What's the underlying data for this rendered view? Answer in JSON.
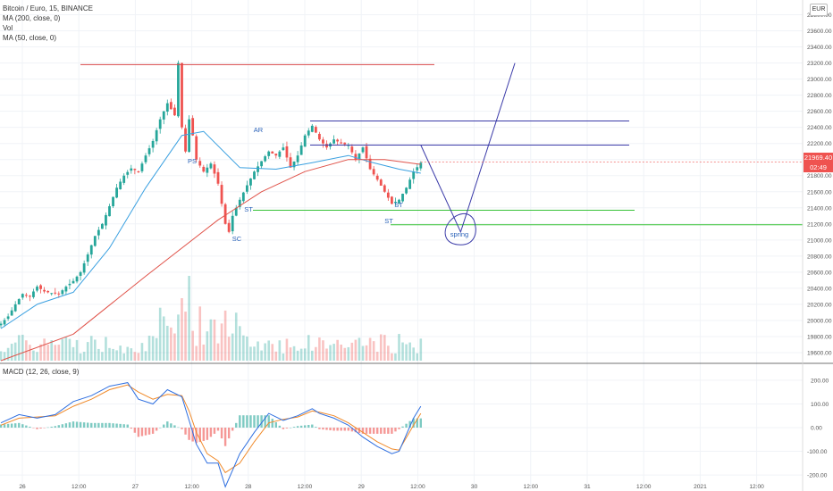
{
  "legend": {
    "symbol": "Bitcoin / Euro, 15, BINANCE",
    "ma200": "MA (200, close, 0)",
    "vol": "Vol",
    "ma50": "MA (50, close, 0)",
    "macd": "MACD (12, 26, close, 9)"
  },
  "currency": "EUR",
  "last_price": "21969.40",
  "countdown": "02:49",
  "colors": {
    "up": "#26a69a",
    "down": "#ef5350",
    "ma200": "#e0534a",
    "ma50": "#3aa0e0",
    "macd_line": "#2f6fe0",
    "signal_line": "#f08a2a",
    "resistance": "#d94a4a",
    "range_lines": "#3a3aa8",
    "support": "#38c238"
  },
  "annotations": [
    "PS",
    "SC",
    "AR",
    "ST",
    "ST",
    "ST",
    "spring"
  ],
  "chart_data": [
    {
      "type": "candlestick",
      "title": "Bitcoin / Euro, 15, BINANCE",
      "x_ticks": [
        "26",
        "12:00",
        "27",
        "12:00",
        "28",
        "12:00",
        "29",
        "12:00",
        "30",
        "12:00",
        "31",
        "12:00",
        "2021",
        "12:00"
      ],
      "y_ticks": [
        19600,
        19800,
        20000,
        20200,
        20400,
        20600,
        20800,
        21000,
        21200,
        21400,
        21600,
        21800,
        22000,
        22200,
        22400,
        22600,
        22800,
        23000,
        23200,
        23400,
        23600,
        23800
      ],
      "ylim": [
        19500,
        23850
      ],
      "price_path": [
        [
          0,
          19960
        ],
        [
          2,
          20050
        ],
        [
          4,
          20200
        ],
        [
          6,
          20330
        ],
        [
          8,
          20300
        ],
        [
          10,
          20420
        ],
        [
          12,
          20360
        ],
        [
          14,
          20340
        ],
        [
          16,
          20330
        ],
        [
          18,
          20420
        ],
        [
          20,
          20490
        ],
        [
          22,
          20600
        ],
        [
          24,
          20820
        ],
        [
          26,
          21050
        ],
        [
          28,
          21200
        ],
        [
          30,
          21420
        ],
        [
          32,
          21650
        ],
        [
          34,
          21800
        ],
        [
          36,
          21890
        ],
        [
          38,
          21850
        ],
        [
          40,
          22050
        ],
        [
          42,
          22230
        ],
        [
          44,
          22500
        ],
        [
          46,
          22700
        ],
        [
          48,
          22550
        ],
        [
          49,
          23200
        ],
        [
          50,
          22400
        ],
        [
          51,
          22100
        ],
        [
          52,
          22500
        ],
        [
          53,
          22300
        ],
        [
          54,
          22000
        ],
        [
          56,
          21850
        ],
        [
          58,
          21950
        ],
        [
          60,
          21700
        ],
        [
          62,
          21200
        ],
        [
          63,
          21100
        ],
        [
          64,
          21300
        ],
        [
          66,
          21500
        ],
        [
          68,
          21680
        ],
        [
          70,
          21850
        ],
        [
          72,
          21980
        ],
        [
          74,
          22100
        ],
        [
          76,
          22050
        ],
        [
          78,
          22150
        ],
        [
          80,
          21900
        ],
        [
          82,
          22050
        ],
        [
          84,
          22300
        ],
        [
          86,
          22420
        ],
        [
          88,
          22250
        ],
        [
          90,
          22150
        ],
        [
          92,
          22250
        ],
        [
          94,
          22200
        ],
        [
          96,
          22180
        ],
        [
          98,
          22000
        ],
        [
          100,
          22150
        ],
        [
          102,
          21880
        ],
        [
          104,
          21750
        ],
        [
          106,
          21600
        ],
        [
          108,
          21450
        ],
        [
          110,
          21500
        ],
        [
          112,
          21650
        ],
        [
          114,
          21850
        ],
        [
          116,
          21960
        ]
      ],
      "series": [
        {
          "name": "MA (50, close, 0)",
          "y": [
            [
              0,
              19900
            ],
            [
              10,
              20200
            ],
            [
              20,
              20350
            ],
            [
              30,
              20900
            ],
            [
              40,
              21650
            ],
            [
              50,
              22300
            ],
            [
              56,
              22350
            ],
            [
              66,
              21900
            ],
            [
              76,
              21880
            ],
            [
              86,
              21960
            ],
            [
              96,
              22050
            ],
            [
              102,
              21970
            ],
            [
              110,
              21880
            ],
            [
              116,
              21830
            ]
          ]
        },
        {
          "name": "MA (200, close, 0)",
          "y": [
            [
              0,
              19500
            ],
            [
              20,
              19830
            ],
            [
              40,
              20550
            ],
            [
              60,
              21250
            ],
            [
              72,
              21600
            ],
            [
              84,
              21850
            ],
            [
              96,
              22000
            ],
            [
              106,
              22000
            ],
            [
              116,
              21940
            ]
          ]
        }
      ],
      "horizontal_levels": {
        "resistance": 23180,
        "range_top": 22480,
        "range_mid": 22180,
        "support_1": 21370,
        "support_2": 21190
      },
      "projection": [
        [
          116,
          22180
        ],
        [
          127,
          21100
        ],
        [
          142,
          23200
        ]
      ]
    },
    {
      "type": "line",
      "title": "MACD (12, 26, close, 9)",
      "y_ticks": [
        200,
        100,
        0,
        -100,
        -200
      ],
      "ylim": [
        -260,
        260
      ],
      "series": [
        {
          "name": "macd",
          "y": [
            [
              0,
              20
            ],
            [
              5,
              55
            ],
            [
              10,
              40
            ],
            [
              15,
              55
            ],
            [
              20,
              110
            ],
            [
              25,
              135
            ],
            [
              30,
              175
            ],
            [
              35,
              190
            ],
            [
              38,
              120
            ],
            [
              42,
              100
            ],
            [
              46,
              160
            ],
            [
              50,
              130
            ],
            [
              52,
              30
            ],
            [
              54,
              -70
            ],
            [
              57,
              -150
            ],
            [
              60,
              -150
            ],
            [
              62,
              -250
            ],
            [
              66,
              -110
            ],
            [
              70,
              -20
            ],
            [
              74,
              60
            ],
            [
              78,
              30
            ],
            [
              82,
              50
            ],
            [
              86,
              80
            ],
            [
              88,
              60
            ],
            [
              92,
              40
            ],
            [
              96,
              10
            ],
            [
              100,
              -40
            ],
            [
              104,
              -80
            ],
            [
              108,
              -110
            ],
            [
              110,
              -100
            ],
            [
              114,
              40
            ],
            [
              116,
              90
            ]
          ]
        },
        {
          "name": "signal",
          "y": [
            [
              0,
              10
            ],
            [
              5,
              40
            ],
            [
              10,
              45
            ],
            [
              15,
              50
            ],
            [
              20,
              90
            ],
            [
              25,
              120
            ],
            [
              30,
              160
            ],
            [
              35,
              180
            ],
            [
              38,
              150
            ],
            [
              42,
              120
            ],
            [
              46,
              140
            ],
            [
              50,
              135
            ],
            [
              52,
              70
            ],
            [
              54,
              -20
            ],
            [
              57,
              -110
            ],
            [
              60,
              -140
            ],
            [
              62,
              -190
            ],
            [
              66,
              -150
            ],
            [
              70,
              -60
            ],
            [
              74,
              20
            ],
            [
              78,
              35
            ],
            [
              82,
              45
            ],
            [
              86,
              70
            ],
            [
              88,
              65
            ],
            [
              92,
              50
            ],
            [
              96,
              20
            ],
            [
              100,
              -20
            ],
            [
              104,
              -60
            ],
            [
              108,
              -90
            ],
            [
              110,
              -95
            ],
            [
              114,
              10
            ],
            [
              116,
              60
            ]
          ]
        }
      ]
    }
  ]
}
